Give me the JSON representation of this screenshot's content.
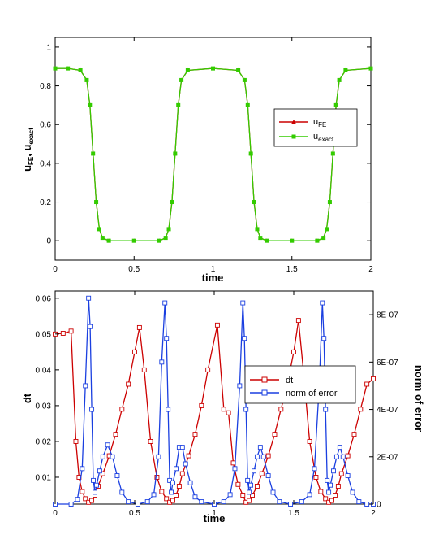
{
  "chart_data": [
    {
      "type": "line",
      "xlabel": "time",
      "ylabel": {
        "main": "u",
        "sub1": "FE",
        "mid": ", u",
        "sub2": "exact"
      },
      "xlim": [
        0,
        2
      ],
      "ylim": [
        -0.1,
        1.05
      ],
      "xticks": [
        0,
        0.5,
        1,
        1.5,
        2
      ],
      "xtick_labels": [
        "0",
        "0.5",
        "1",
        "1.5",
        "2"
      ],
      "yticks": [
        0,
        0.2,
        0.4,
        0.6,
        0.8,
        1
      ],
      "ytick_labels": [
        "0",
        "0.2",
        "0.4",
        "0.6",
        "0.8",
        "1"
      ],
      "legend_position": "right",
      "series": [
        {
          "name": {
            "main": "u",
            "sub": "FE"
          },
          "color": "#cc0000",
          "marker": "triangle",
          "x": [
            0.0,
            0.08,
            0.16,
            0.2,
            0.22,
            0.24,
            0.26,
            0.28,
            0.3,
            0.34,
            0.5,
            0.66,
            0.7,
            0.72,
            0.74,
            0.76,
            0.78,
            0.8,
            0.84,
            1.0,
            1.16,
            1.2,
            1.22,
            1.24,
            1.26,
            1.28,
            1.3,
            1.34,
            1.5,
            1.66,
            1.7,
            1.72,
            1.74,
            1.76,
            1.78,
            1.8,
            1.84,
            2.0
          ],
          "y": [
            0.89,
            0.89,
            0.88,
            0.83,
            0.7,
            0.45,
            0.2,
            0.06,
            0.015,
            0.0,
            0.0,
            0.0,
            0.015,
            0.06,
            0.2,
            0.45,
            0.7,
            0.83,
            0.88,
            0.89,
            0.88,
            0.83,
            0.7,
            0.45,
            0.2,
            0.06,
            0.015,
            0.0,
            0.0,
            0.0,
            0.015,
            0.06,
            0.2,
            0.45,
            0.7,
            0.83,
            0.88,
            0.89
          ]
        },
        {
          "name": {
            "main": "u",
            "sub": "exact"
          },
          "color": "#33cc00",
          "marker": "square",
          "x": [
            0.0,
            0.08,
            0.16,
            0.2,
            0.22,
            0.24,
            0.26,
            0.28,
            0.3,
            0.34,
            0.5,
            0.66,
            0.7,
            0.72,
            0.74,
            0.76,
            0.78,
            0.8,
            0.84,
            1.0,
            1.16,
            1.2,
            1.22,
            1.24,
            1.26,
            1.28,
            1.3,
            1.34,
            1.5,
            1.66,
            1.7,
            1.72,
            1.74,
            1.76,
            1.78,
            1.8,
            1.84,
            2.0
          ],
          "y": [
            0.89,
            0.89,
            0.88,
            0.83,
            0.7,
            0.45,
            0.2,
            0.06,
            0.015,
            0.0,
            0.0,
            0.0,
            0.015,
            0.06,
            0.2,
            0.45,
            0.7,
            0.83,
            0.88,
            0.89,
            0.88,
            0.83,
            0.7,
            0.45,
            0.2,
            0.06,
            0.015,
            0.0,
            0.0,
            0.0,
            0.015,
            0.06,
            0.2,
            0.45,
            0.7,
            0.83,
            0.88,
            0.89
          ]
        }
      ]
    },
    {
      "type": "line",
      "xlabel": "time",
      "ylabel": "dt",
      "y2label": "norm of error",
      "xlim": [
        0,
        2
      ],
      "ylim": [
        0.0025,
        0.062
      ],
      "y2lim": [
        0,
        9e-07
      ],
      "xticks": [
        0,
        0.5,
        1,
        1.5,
        2
      ],
      "xtick_labels": [
        "0",
        "0.5",
        "1",
        "1.5",
        "2"
      ],
      "yticks": [
        0.01,
        0.02,
        0.03,
        0.04,
        0.05,
        0.06
      ],
      "ytick_labels": [
        "0.01",
        "0.02",
        "0.03",
        "0.04",
        "0.05",
        "0.06"
      ],
      "y2ticks": [
        0,
        2e-07,
        4e-07,
        6e-07,
        8e-07
      ],
      "y2tick_labels": [
        "0",
        "2E-07",
        "4E-07",
        "6E-07",
        "8E-07"
      ],
      "legend_position": "right",
      "series": [
        {
          "name": "dt",
          "color": "#cc0000",
          "marker": "square",
          "axis": "left",
          "x": [
            0.0,
            0.05,
            0.1,
            0.13,
            0.15,
            0.17,
            0.19,
            0.21,
            0.23,
            0.25,
            0.27,
            0.3,
            0.34,
            0.38,
            0.42,
            0.46,
            0.5,
            0.53,
            0.56,
            0.6,
            0.64,
            0.67,
            0.7,
            0.72,
            0.74,
            0.76,
            0.78,
            0.8,
            0.84,
            0.88,
            0.92,
            0.96,
            1.02,
            1.06,
            1.09,
            1.12,
            1.15,
            1.18,
            1.2,
            1.22,
            1.24,
            1.27,
            1.3,
            1.34,
            1.38,
            1.42,
            1.46,
            1.5,
            1.53,
            1.56,
            1.6,
            1.64,
            1.67,
            1.7,
            1.72,
            1.74,
            1.76,
            1.78,
            1.8,
            1.84,
            1.88,
            1.92,
            1.96,
            2.0
          ],
          "y": [
            0.05,
            0.0502,
            0.0508,
            0.02,
            0.01,
            0.006,
            0.004,
            0.003,
            0.0035,
            0.005,
            0.0075,
            0.011,
            0.016,
            0.022,
            0.029,
            0.036,
            0.045,
            0.0518,
            0.04,
            0.02,
            0.01,
            0.006,
            0.004,
            0.003,
            0.0035,
            0.005,
            0.0075,
            0.011,
            0.016,
            0.022,
            0.03,
            0.04,
            0.0525,
            0.029,
            0.028,
            0.014,
            0.008,
            0.005,
            0.003,
            0.0035,
            0.005,
            0.0075,
            0.011,
            0.016,
            0.022,
            0.029,
            0.036,
            0.045,
            0.0538,
            0.04,
            0.02,
            0.01,
            0.006,
            0.004,
            0.003,
            0.0035,
            0.005,
            0.0075,
            0.011,
            0.016,
            0.022,
            0.029,
            0.036,
            0.0375
          ]
        },
        {
          "name": "norm of error",
          "color": "#1a3fe0",
          "marker": "square",
          "axis": "right",
          "x": [
            0.0,
            0.1,
            0.14,
            0.17,
            0.19,
            0.21,
            0.22,
            0.23,
            0.24,
            0.25,
            0.26,
            0.28,
            0.3,
            0.33,
            0.36,
            0.39,
            0.42,
            0.46,
            0.52,
            0.58,
            0.62,
            0.65,
            0.67,
            0.69,
            0.7,
            0.71,
            0.72,
            0.73,
            0.74,
            0.76,
            0.78,
            0.8,
            0.82,
            0.85,
            0.88,
            0.92,
            1.0,
            1.06,
            1.1,
            1.13,
            1.16,
            1.18,
            1.19,
            1.2,
            1.21,
            1.22,
            1.23,
            1.25,
            1.27,
            1.29,
            1.31,
            1.34,
            1.37,
            1.41,
            1.48,
            1.55,
            1.6,
            1.63,
            1.66,
            1.68,
            1.69,
            1.7,
            1.71,
            1.72,
            1.73,
            1.75,
            1.77,
            1.79,
            1.81,
            1.84,
            1.87,
            1.91,
            1.96,
            2.0
          ],
          "y": [
            0.0,
            0.0,
            2e-08,
            1.5e-07,
            5e-07,
            8.7e-07,
            7.5e-07,
            4e-07,
            1e-07,
            5e-08,
            8e-08,
            1.4e-07,
            2e-07,
            2.5e-07,
            2e-07,
            1.2e-07,
            5e-08,
            1e-08,
            0.0,
            1e-08,
            4e-08,
            2e-07,
            6e-07,
            8.5e-07,
            7e-07,
            4e-07,
            1e-07,
            5e-08,
            9e-08,
            1.5e-07,
            2.4e-07,
            2.4e-07,
            1.7e-07,
            9e-08,
            3e-08,
            1e-08,
            0.0,
            1e-08,
            4e-08,
            1.5e-07,
            5e-07,
            8.5e-07,
            7e-07,
            4e-07,
            1e-07,
            5e-08,
            8e-08,
            1.4e-07,
            2e-07,
            2.4e-07,
            2e-07,
            1.2e-07,
            5e-08,
            1e-08,
            0.0,
            1e-08,
            4e-08,
            1.5e-07,
            5e-07,
            8.5e-07,
            7e-07,
            4e-07,
            1e-07,
            5e-08,
            8e-08,
            1.4e-07,
            2e-07,
            2.4e-07,
            2e-07,
            1.2e-07,
            5e-08,
            1e-08,
            0.0,
            0.0
          ]
        }
      ]
    }
  ]
}
